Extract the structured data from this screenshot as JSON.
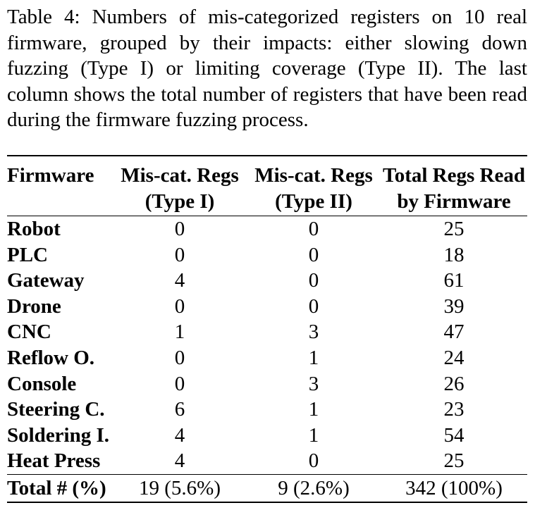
{
  "caption": "Table 4: Numbers of mis-categorized registers on 10 real firmware, grouped by their impacts: either slowing down fuzzing (Type I) or limiting coverage (Type II). The last column shows the total number of registers that have been read during the firmware fuzzing process.",
  "table": {
    "headers": {
      "col0": "Firmware",
      "col1_line1": "Mis-cat. Regs",
      "col1_line2": "(Type I)",
      "col2_line1": "Mis-cat. Regs",
      "col2_line2": "(Type II)",
      "col3_line1": "Total Regs Read",
      "col3_line2": "by Firmware"
    },
    "rows": [
      {
        "firmware": "Robot",
        "type1": "0",
        "type2": "0",
        "total": "25"
      },
      {
        "firmware": "PLC",
        "type1": "0",
        "type2": "0",
        "total": "18"
      },
      {
        "firmware": "Gateway",
        "type1": "4",
        "type2": "0",
        "total": "61"
      },
      {
        "firmware": "Drone",
        "type1": "0",
        "type2": "0",
        "total": "39"
      },
      {
        "firmware": "CNC",
        "type1": "1",
        "type2": "3",
        "total": "47"
      },
      {
        "firmware": "Reflow O.",
        "type1": "0",
        "type2": "1",
        "total": "24"
      },
      {
        "firmware": "Console",
        "type1": "0",
        "type2": "3",
        "total": "26"
      },
      {
        "firmware": "Steering C.",
        "type1": "6",
        "type2": "1",
        "total": "23"
      },
      {
        "firmware": "Soldering I.",
        "type1": "4",
        "type2": "1",
        "total": "54"
      },
      {
        "firmware": "Heat Press",
        "type1": "4",
        "type2": "0",
        "total": "25"
      }
    ],
    "total": {
      "label": "Total # (%)",
      "type1": "19 (5.6%)",
      "type2": "9 (2.6%)",
      "total": "342 (100%)"
    }
  }
}
